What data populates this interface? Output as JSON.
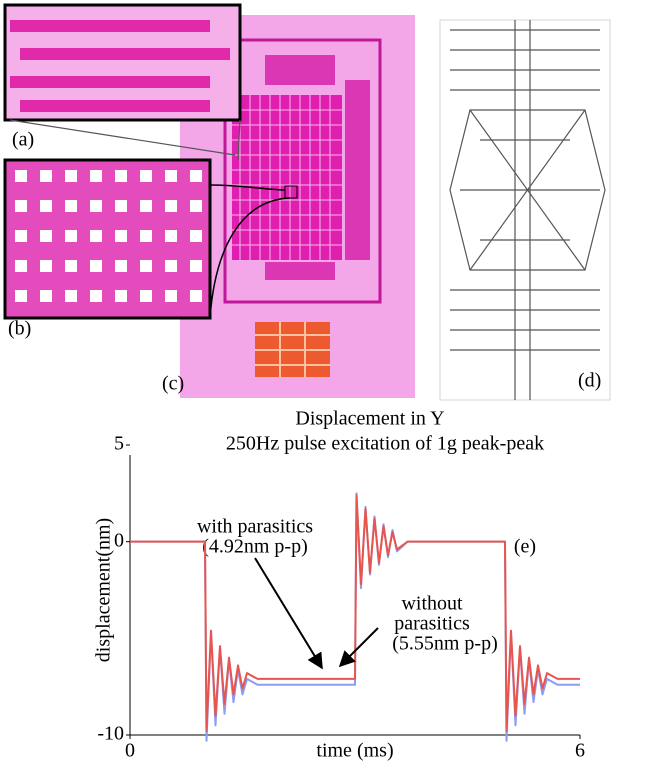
{
  "panels": [
    "(a)",
    "(b)",
    "(c)",
    "(d)"
  ],
  "chart_data": {
    "type": "line",
    "title": "Displacement in Y",
    "subtitle": "250Hz pulse excitation of 1g peak-peak",
    "x_label": "time (ms)",
    "y_label": "displacement(nm)",
    "xlim": [
      0,
      6
    ],
    "xticks": [
      0,
      6
    ],
    "ylim": [
      -10,
      5
    ],
    "yticks": [
      5,
      0,
      -10
    ],
    "x": [
      0,
      1.0,
      1.02,
      1.08,
      1.14,
      1.2,
      1.26,
      1.32,
      1.38,
      1.44,
      1.5,
      1.56,
      1.7,
      3.0,
      3.02,
      3.08,
      3.14,
      3.2,
      3.26,
      3.32,
      3.38,
      3.44,
      3.5,
      3.56,
      3.7,
      5.0,
      5.02,
      5.08,
      5.14,
      5.2,
      5.26,
      5.32,
      5.38,
      5.44,
      5.5,
      5.56,
      5.7,
      6.0
    ],
    "series": [
      {
        "color": "#8c9cf2",
        "values": [
          0,
          0,
          -10.3,
          -4.7,
          -9.5,
          -5.5,
          -8.9,
          -6.1,
          -8.3,
          -6.6,
          -7.9,
          -7.1,
          -7.4,
          -7.4,
          2.5,
          -2.4,
          1.8,
          -1.7,
          1.3,
          -1.2,
          0.9,
          -0.8,
          0.6,
          -0.5,
          0,
          0,
          -10.3,
          -4.7,
          -9.5,
          -5.5,
          -8.9,
          -6.1,
          -8.3,
          -6.6,
          -7.9,
          -7.1,
          -7.4,
          -7.4
        ]
      },
      {
        "color": "#e8554e",
        "values": [
          0,
          0,
          -9.8,
          -4.6,
          -9.0,
          -5.4,
          -8.4,
          -6.0,
          -7.9,
          -6.4,
          -7.6,
          -6.8,
          -7.1,
          -7.1,
          2.4,
          -2.2,
          1.7,
          -1.6,
          1.2,
          -1.1,
          0.8,
          -0.7,
          0.5,
          -0.4,
          0,
          0,
          -9.8,
          -4.6,
          -9.0,
          -5.4,
          -8.4,
          -6.0,
          -7.9,
          -6.4,
          -7.6,
          -6.8,
          -7.1,
          -7.1
        ]
      }
    ],
    "annotations": [
      "with parasitics",
      "(4.92nm p-p)",
      "without",
      "parasitics",
      "(5.55nm p-p)",
      "(e)"
    ]
  }
}
